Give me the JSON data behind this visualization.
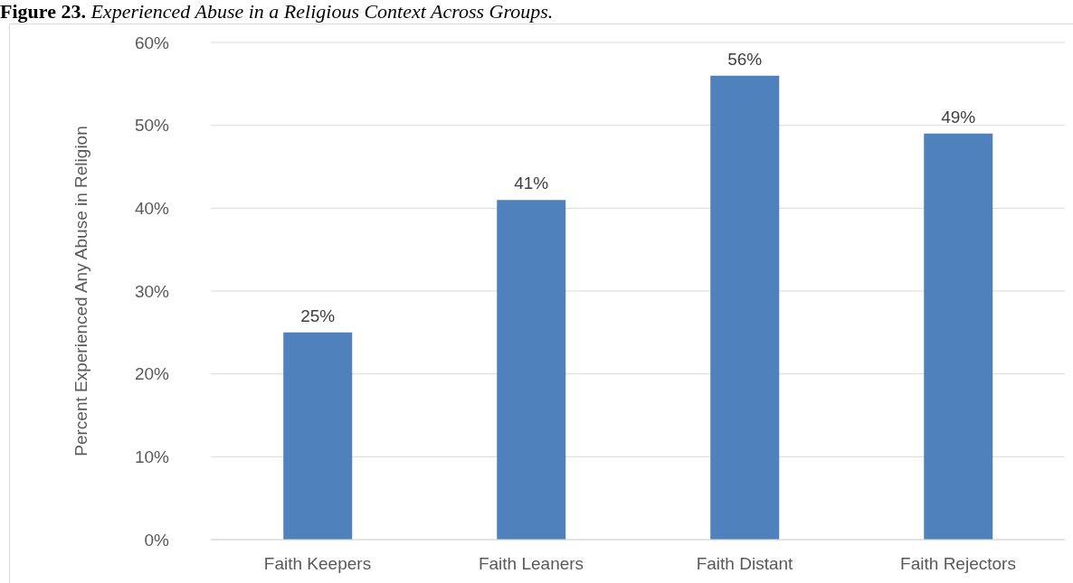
{
  "chart_data": {
    "type": "bar",
    "title": "Figure 23. Experienced Abuse in a Religious Context Across Groups.",
    "ylabel": "Percent Experienced Any Abuse in Religion",
    "categories": [
      "Faith Keepers",
      "Faith Leaners",
      "Faith Distant",
      "Faith Rejectors"
    ],
    "values": [
      25,
      41,
      56,
      49
    ],
    "value_labels": [
      "25%",
      "41%",
      "56%",
      "49%"
    ],
    "color": "#4f81bd",
    "ylim": [
      0,
      60
    ],
    "yticks": [
      {
        "value": 0,
        "label": "0%"
      },
      {
        "value": 10,
        "label": "10%"
      },
      {
        "value": 20,
        "label": "20%"
      },
      {
        "value": 30,
        "label": "30%"
      },
      {
        "value": 40,
        "label": "40%"
      },
      {
        "value": 50,
        "label": "50%"
      },
      {
        "value": 60,
        "label": "60%"
      }
    ],
    "grid": "y"
  }
}
